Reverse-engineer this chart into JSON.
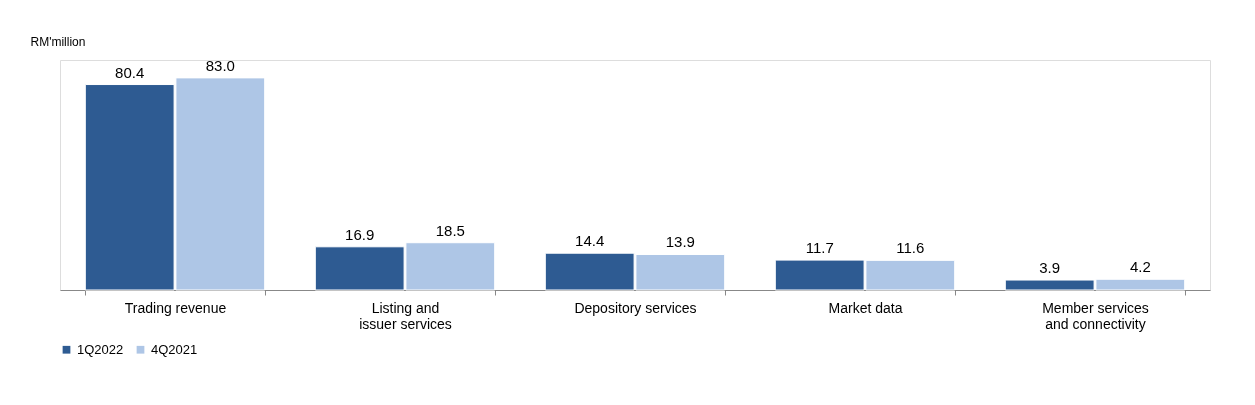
{
  "chart_data": {
    "type": "bar",
    "ylabel": "RM'million",
    "categories": [
      "Trading revenue",
      "Listing and issuer services",
      "Depository services",
      "Market data",
      "Member services and connectivity"
    ],
    "series": [
      {
        "name": "1Q2022",
        "color": "#2e5b92",
        "values": [
          80.4,
          16.9,
          14.4,
          11.7,
          3.9
        ],
        "value_labels": [
          "80.4",
          "16.9",
          "14.4",
          "11.7",
          "3.9"
        ]
      },
      {
        "name": "4Q2021",
        "color": "#aec6e6",
        "values": [
          83.0,
          18.5,
          13.9,
          11.6,
          4.2
        ],
        "value_labels": [
          "83.0",
          "18.5",
          "13.9",
          "11.6",
          "4.2"
        ]
      }
    ],
    "legend": "bottom left",
    "grid": false,
    "tick_labels": "x"
  }
}
